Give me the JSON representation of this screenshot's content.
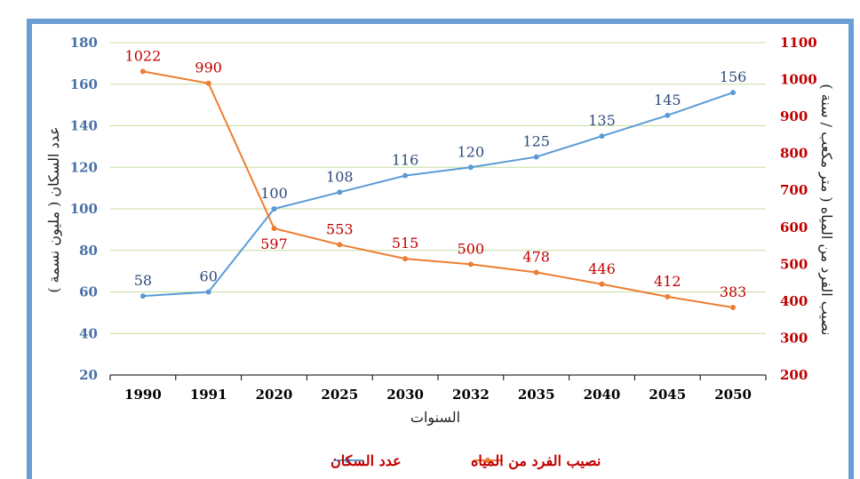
{
  "chart_data": {
    "type": "line",
    "categories": [
      "1990",
      "1991",
      "2020",
      "2025",
      "2030",
      "2032",
      "2035",
      "2040",
      "2045",
      "2050"
    ],
    "series": [
      {
        "name": "عدد السكان",
        "axis": "left",
        "color": "#5b9bd5",
        "values": [
          58,
          60,
          100,
          108,
          116,
          120,
          125,
          135,
          145,
          156
        ]
      },
      {
        "name": "نصيب الفرد من المياه",
        "axis": "right",
        "color": "#ed7d31",
        "values": [
          1022,
          990,
          597,
          553,
          515,
          500,
          478,
          446,
          412,
          383
        ]
      }
    ],
    "xlabel": "السنوات",
    "ylabel_left": "عدد السكان ( مليون نسمة )",
    "ylabel_right": "نصيب الفرد من المياه ( متر مكعب / سنة )",
    "ylim_left": [
      20,
      180
    ],
    "yticks_left": [
      "20",
      "40",
      "60",
      "80",
      "100",
      "120",
      "140",
      "160",
      "180"
    ],
    "ylim_right": [
      200,
      1100
    ],
    "yticks_right": [
      "200",
      "300",
      "400",
      "500",
      "600",
      "700",
      "800",
      "900",
      "1000",
      "1100"
    ],
    "grid": true,
    "legend_position": "bottom",
    "colors": {
      "frame": "#5b9bd5",
      "grid": "#c5dea0",
      "left_axis": "#4a6fa5",
      "right_axis": "#c00000"
    }
  }
}
